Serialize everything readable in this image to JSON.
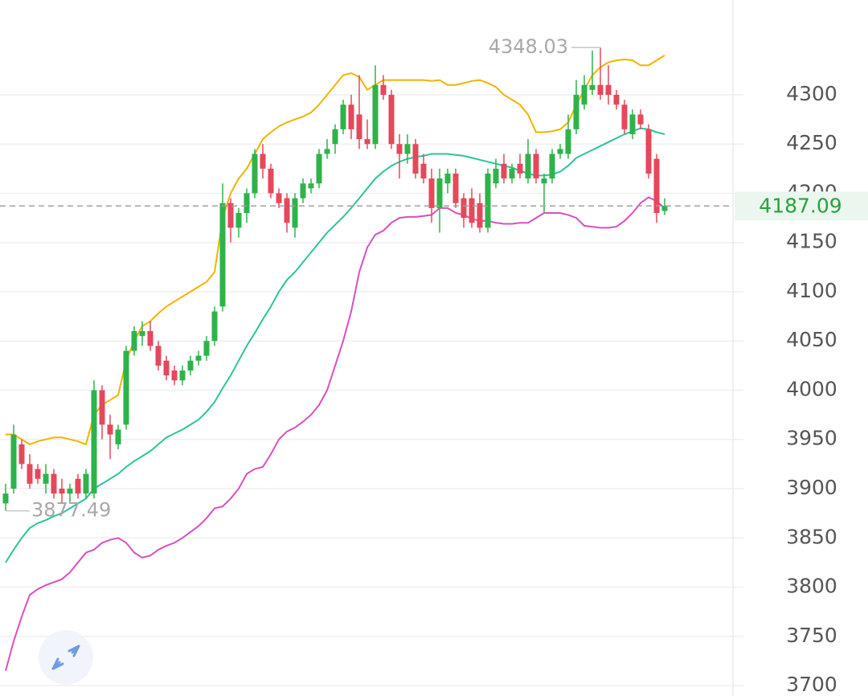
{
  "chart_data": {
    "type": "candlestick",
    "up_color": "#2eb34a",
    "down_color": "#e5485b",
    "open": [
      3885,
      3900,
      3945,
      3925,
      3920,
      3905,
      3915,
      3900,
      3895,
      3910,
      3895,
      3895,
      4000,
      3965,
      3945,
      3965,
      4040,
      4055,
      4060,
      4045,
      4030,
      4020,
      4010,
      4020,
      4030,
      4035,
      4050,
      4085,
      4190,
      4165,
      4180,
      4200,
      4240,
      4225,
      4200,
      4195,
      4165,
      4195,
      4205,
      4210,
      4240,
      4250,
      4265,
      4290,
      4280,
      4255,
      4250,
      4310,
      4300,
      4250,
      4240,
      4250,
      4230,
      4215,
      4185,
      4210,
      4220,
      4195,
      4195,
      4190,
      4165,
      4210,
      4230,
      4215,
      4230,
      4215,
      4240,
      4210,
      4215,
      4240,
      4240,
      4265,
      4290,
      4305,
      4310,
      4310,
      4300,
      4290,
      4260,
      4280,
      4265,
      4235,
      4182
    ],
    "high": [
      3905,
      3965,
      3950,
      3935,
      3925,
      3925,
      3920,
      3910,
      3905,
      3915,
      3920,
      4010,
      4005,
      3975,
      3965,
      4045,
      4065,
      4070,
      4070,
      4050,
      4035,
      4025,
      4025,
      4035,
      4040,
      4055,
      4085,
      4210,
      4195,
      4185,
      4205,
      4245,
      4250,
      4230,
      4205,
      4200,
      4200,
      4215,
      4215,
      4245,
      4255,
      4270,
      4295,
      4300,
      4320,
      4275,
      4330,
      4320,
      4305,
      4260,
      4260,
      4255,
      4240,
      4225,
      4225,
      4225,
      4225,
      4200,
      4205,
      4200,
      4225,
      4235,
      4240,
      4230,
      4240,
      4255,
      4245,
      4220,
      4245,
      4250,
      4280,
      4315,
      4320,
      4345,
      4348.03,
      4330,
      4305,
      4295,
      4285,
      4285,
      4270,
      4240,
      4195
    ],
    "low": [
      3877.49,
      3895,
      3920,
      3900,
      3905,
      3895,
      3890,
      3885,
      3885,
      3890,
      3890,
      3890,
      3950,
      3930,
      3940,
      3960,
      4035,
      4045,
      4040,
      4020,
      4010,
      4005,
      4005,
      4015,
      4025,
      4030,
      4045,
      4080,
      4150,
      4155,
      4170,
      4195,
      4215,
      4195,
      4185,
      4160,
      4155,
      4190,
      4200,
      4205,
      4235,
      4240,
      4260,
      4255,
      4245,
      4245,
      4245,
      4295,
      4245,
      4215,
      4230,
      4215,
      4210,
      4170,
      4160,
      4200,
      4185,
      4165,
      4165,
      4160,
      4160,
      4205,
      4210,
      4210,
      4215,
      4210,
      4210,
      4180,
      4210,
      4235,
      4235,
      4260,
      4285,
      4300,
      4295,
      4290,
      4285,
      4260,
      4255,
      4265,
      4215,
      4170,
      4178
    ],
    "close": [
      3895,
      3955,
      3925,
      3905,
      3910,
      3915,
      3895,
      3895,
      3900,
      3895,
      3915,
      4000,
      3965,
      3955,
      3960,
      4040,
      4060,
      4060,
      4045,
      4025,
      4015,
      4010,
      4020,
      4030,
      4035,
      4050,
      4080,
      4190,
      4165,
      4180,
      4200,
      4240,
      4225,
      4200,
      4190,
      4170,
      4195,
      4210,
      4210,
      4240,
      4245,
      4265,
      4290,
      4265,
      4255,
      4250,
      4310,
      4300,
      4250,
      4240,
      4250,
      4220,
      4215,
      4185,
      4215,
      4220,
      4190,
      4175,
      4170,
      4165,
      4220,
      4225,
      4215,
      4225,
      4220,
      4240,
      4215,
      4215,
      4240,
      4245,
      4265,
      4300,
      4310,
      4310,
      4300,
      4300,
      4290,
      4265,
      4280,
      4270,
      4220,
      4180,
      4187.09
    ],
    "bands": [
      {
        "color": "#f0b400",
        "values": [
          3955,
          3955,
          3950,
          3945,
          3948,
          3950,
          3952,
          3952,
          3950,
          3948,
          3945,
          3975,
          3985,
          3990,
          3995,
          4030,
          4050,
          4065,
          4070,
          4078,
          4085,
          4090,
          4095,
          4100,
          4105,
          4110,
          4120,
          4175,
          4200,
          4215,
          4225,
          4240,
          4255,
          4262,
          4268,
          4272,
          4275,
          4278,
          4282,
          4290,
          4300,
          4310,
          4320,
          4322,
          4318,
          4305,
          4310,
          4315,
          4315,
          4315,
          4315,
          4315,
          4315,
          4314,
          4315,
          4310,
          4310,
          4312,
          4314,
          4315,
          4312,
          4308,
          4300,
          4295,
          4290,
          4280,
          4262,
          4262,
          4263,
          4265,
          4272,
          4290,
          4305,
          4320,
          4328,
          4333,
          4335,
          4336,
          4335,
          4330,
          4330,
          4335,
          4340
        ]
      },
      {
        "color": "#2cc49a",
        "values": [
          3825,
          3838,
          3850,
          3860,
          3865,
          3868,
          3872,
          3875,
          3880,
          3885,
          3890,
          3900,
          3905,
          3910,
          3915,
          3922,
          3928,
          3933,
          3938,
          3945,
          3952,
          3956,
          3960,
          3965,
          3970,
          3978,
          3988,
          4002,
          4015,
          4030,
          4045,
          4058,
          4072,
          4085,
          4100,
          4112,
          4120,
          4130,
          4140,
          4150,
          4160,
          4168,
          4176,
          4185,
          4195,
          4205,
          4215,
          4222,
          4228,
          4232,
          4235,
          4237,
          4238,
          4240,
          4240,
          4240,
          4239,
          4238,
          4236,
          4234,
          4232,
          4230,
          4228,
          4226,
          4223,
          4220,
          4218,
          4218,
          4219,
          4222,
          4228,
          4236,
          4240,
          4244,
          4248,
          4252,
          4256,
          4260,
          4263,
          4266,
          4265,
          4262,
          4260
        ]
      },
      {
        "color": "#d94fc0",
        "values": [
          3715,
          3745,
          3770,
          3792,
          3798,
          3802,
          3805,
          3808,
          3815,
          3825,
          3835,
          3838,
          3845,
          3848,
          3850,
          3845,
          3835,
          3830,
          3832,
          3838,
          3842,
          3845,
          3850,
          3856,
          3862,
          3870,
          3880,
          3882,
          3890,
          3900,
          3915,
          3920,
          3922,
          3935,
          3950,
          3958,
          3962,
          3968,
          3975,
          3985,
          4000,
          4025,
          4050,
          4080,
          4120,
          4145,
          4158,
          4162,
          4170,
          4175,
          4176,
          4176,
          4177,
          4178,
          4185,
          4185,
          4180,
          4178,
          4174,
          4172,
          4172,
          4170,
          4169,
          4169,
          4170,
          4170,
          4175,
          4180,
          4180,
          4180,
          4178,
          4175,
          4167,
          4166,
          4165,
          4165,
          4166,
          4172,
          4180,
          4190,
          4196,
          4192,
          4185
        ]
      }
    ],
    "high_label": 4348.03,
    "low_label": 3877.49,
    "last_price": 4187.09,
    "last_price_color": "#27a33c",
    "ylim": [
      3689.4,
      4396.3
    ],
    "yticks": [
      3700,
      3750,
      3800,
      3850,
      3900,
      3950,
      4000,
      4050,
      4100,
      4150,
      4200,
      4250,
      4300
    ],
    "grid": true
  }
}
